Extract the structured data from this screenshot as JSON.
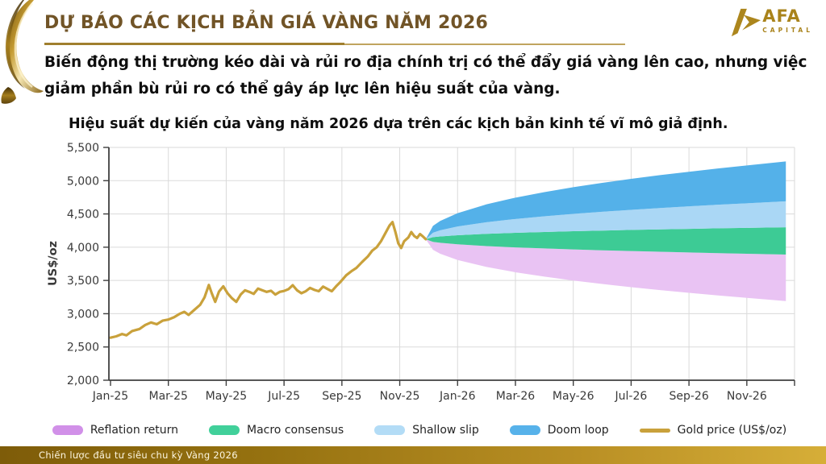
{
  "header": {
    "title": "DỰ BÁO CÁC KỊCH BẢN GIÁ VÀNG NĂM 2026",
    "logo": {
      "text": "AFA",
      "subtext": "CAPITAL",
      "color": "#a9831b"
    }
  },
  "intro": {
    "lines": [
      "Biến động thị trường kéo dài và rủi ro địa chính trị có thể đẩy giá vàng lên cao, nhưng việc",
      "giảm phần bù rủi ro có thể gây áp lực lên hiệu suất của vàng."
    ]
  },
  "footer": {
    "text": "Chiến lược đầu tư siêu chu kỳ Vàng 2026"
  },
  "chart_data": {
    "type": "line",
    "title": "Hiệu suất dự kiến của vàng năm 2026 dựa trên các kịch bản kinh tế vĩ mô giả định.",
    "xlabel": "",
    "ylabel": "US$/oz",
    "ylim": [
      2000,
      5500
    ],
    "ytick_step": 500,
    "grid": true,
    "legend_position": "bottom",
    "xticks": [
      "Jan-25",
      "Mar-25",
      "May-25",
      "Jul-25",
      "Sep-25",
      "Nov-25",
      "Jan-26",
      "Mar-26",
      "May-26",
      "Jul-26",
      "Sep-26",
      "Nov-26"
    ],
    "xtick_months": [
      0,
      2,
      4,
      6,
      8,
      10,
      12,
      14,
      16,
      18,
      20,
      22
    ],
    "gold_line": {
      "name": "Gold price (US$/oz)",
      "color": "#c9a13b",
      "points": [
        [
          0,
          2640
        ],
        [
          0.2,
          2660
        ],
        [
          0.4,
          2695
        ],
        [
          0.55,
          2675
        ],
        [
          0.75,
          2740
        ],
        [
          1,
          2770
        ],
        [
          1.2,
          2830
        ],
        [
          1.4,
          2868
        ],
        [
          1.6,
          2842
        ],
        [
          1.8,
          2895
        ],
        [
          2,
          2912
        ],
        [
          2.2,
          2948
        ],
        [
          2.4,
          3000
        ],
        [
          2.55,
          3028
        ],
        [
          2.7,
          2982
        ],
        [
          2.9,
          3058
        ],
        [
          3.1,
          3135
        ],
        [
          3.25,
          3245
        ],
        [
          3.4,
          3432
        ],
        [
          3.5,
          3308
        ],
        [
          3.62,
          3178
        ],
        [
          3.75,
          3332
        ],
        [
          3.9,
          3412
        ],
        [
          4.05,
          3305
        ],
        [
          4.2,
          3232
        ],
        [
          4.35,
          3178
        ],
        [
          4.5,
          3288
        ],
        [
          4.65,
          3352
        ],
        [
          4.8,
          3328
        ],
        [
          4.95,
          3298
        ],
        [
          5.1,
          3378
        ],
        [
          5.25,
          3352
        ],
        [
          5.4,
          3328
        ],
        [
          5.55,
          3345
        ],
        [
          5.7,
          3288
        ],
        [
          5.85,
          3328
        ],
        [
          6,
          3342
        ],
        [
          6.15,
          3368
        ],
        [
          6.3,
          3428
        ],
        [
          6.45,
          3352
        ],
        [
          6.6,
          3308
        ],
        [
          6.75,
          3338
        ],
        [
          6.9,
          3388
        ],
        [
          7.05,
          3358
        ],
        [
          7.2,
          3338
        ],
        [
          7.35,
          3408
        ],
        [
          7.5,
          3372
        ],
        [
          7.65,
          3338
        ],
        [
          7.8,
          3412
        ],
        [
          7.95,
          3478
        ],
        [
          8.15,
          3578
        ],
        [
          8.35,
          3645
        ],
        [
          8.5,
          3688
        ],
        [
          8.7,
          3778
        ],
        [
          8.9,
          3862
        ],
        [
          9.05,
          3948
        ],
        [
          9.2,
          3998
        ],
        [
          9.35,
          4088
        ],
        [
          9.5,
          4208
        ],
        [
          9.65,
          4328
        ],
        [
          9.75,
          4378
        ],
        [
          9.85,
          4228
        ],
        [
          9.95,
          4058
        ],
        [
          10.05,
          3988
        ],
        [
          10.15,
          4088
        ],
        [
          10.3,
          4148
        ],
        [
          10.4,
          4228
        ],
        [
          10.5,
          4168
        ],
        [
          10.6,
          4138
        ],
        [
          10.7,
          4198
        ],
        [
          10.8,
          4162
        ],
        [
          10.9,
          4120
        ]
      ]
    },
    "fan": {
      "months": [
        10.9,
        11.15,
        11.4,
        12,
        13,
        14,
        15,
        16,
        17,
        18,
        19,
        20,
        21,
        22,
        23.35
      ],
      "boundaries": {
        "doom_top": [
          4120,
          4321,
          4395,
          4512,
          4644,
          4745,
          4828,
          4902,
          4967,
          5027,
          5083,
          5134,
          5184,
          5229,
          5290
        ],
        "shallow_top": [
          4120,
          4218,
          4254,
          4311,
          4375,
          4424,
          4465,
          4501,
          4533,
          4562,
          4589,
          4614,
          4638,
          4660,
          4690
        ],
        "macro_top": [
          4120,
          4151,
          4162,
          4180,
          4201,
          4216,
          4229,
          4240,
          4250,
          4260,
          4268,
          4276,
          4284,
          4291,
          4300
        ],
        "macro_bottom": [
          4120,
          4080,
          4066,
          4043,
          4017,
          3997,
          3981,
          3966,
          3953,
          3942,
          3931,
          3921,
          3911,
          3902,
          3890
        ],
        "reflation_bottom": [
          4120,
          3960,
          3901,
          3808,
          3703,
          3623,
          3557,
          3499,
          3447,
          3399,
          3355,
          3314,
          3275,
          3238,
          3190
        ]
      },
      "bands": [
        {
          "name": "Reflation return",
          "color": "#e9c3f3",
          "upper": "macro_bottom",
          "lower": "reflation_bottom"
        },
        {
          "name": "Macro consensus",
          "color": "#3dcb95",
          "upper": "macro_top",
          "lower": "macro_bottom"
        },
        {
          "name": "Shallow slip",
          "color": "#aad7f5",
          "upper": "shallow_top",
          "lower": "macro_top"
        },
        {
          "name": "Doom loop",
          "color": "#54b1e9",
          "upper": "doom_top",
          "lower": "shallow_top"
        }
      ]
    },
    "legend": [
      {
        "label": "Reflation return",
        "color": "#d190e8",
        "kind": "area"
      },
      {
        "label": "Macro consensus",
        "color": "#41d09a",
        "kind": "area"
      },
      {
        "label": "Shallow slip",
        "color": "#b3dcf6",
        "kind": "area"
      },
      {
        "label": "Doom loop",
        "color": "#57b2ea",
        "kind": "area"
      },
      {
        "label": "Gold price (US$/oz)",
        "color": "#c9a13b",
        "kind": "line"
      }
    ]
  }
}
